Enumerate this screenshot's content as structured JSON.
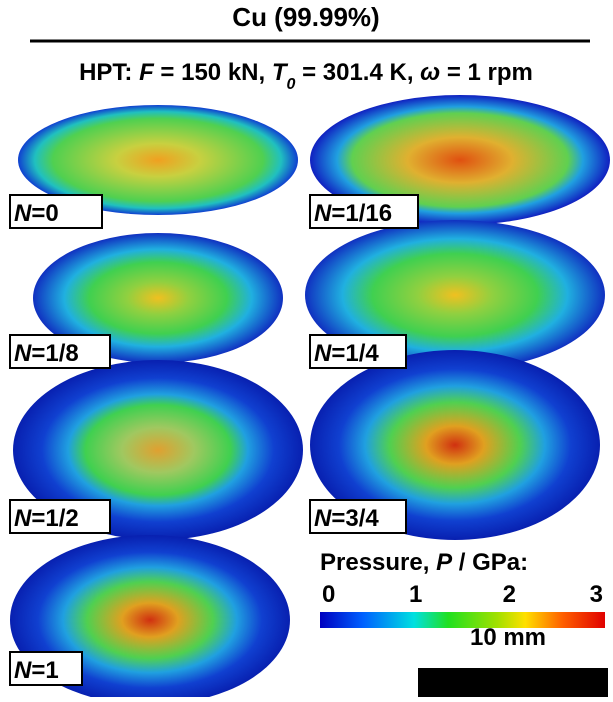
{
  "title": "Cu (99.99%)",
  "subtitle": [
    "HPT: ",
    "F",
    " = 150 kN, ",
    "T",
    "0",
    " = 301.4 K, ",
    "ω",
    " = 1 rpm"
  ],
  "panels": [
    {
      "symbol": "N",
      "value": "=0"
    },
    {
      "symbol": "N",
      "value": "=1/16"
    },
    {
      "symbol": "N",
      "value": "=1/8"
    },
    {
      "symbol": "N",
      "value": "=1/4"
    },
    {
      "symbol": "N",
      "value": "=1/2"
    },
    {
      "symbol": "N",
      "value": "=3/4"
    },
    {
      "symbol": "N",
      "value": "=1"
    }
  ],
  "colorbar": {
    "label": [
      "Pressure, ",
      "P",
      " / GPa:"
    ],
    "range": [
      0,
      3
    ],
    "ticks": [
      0,
      1,
      2,
      3
    ]
  },
  "scale_bar": "10 mm"
}
